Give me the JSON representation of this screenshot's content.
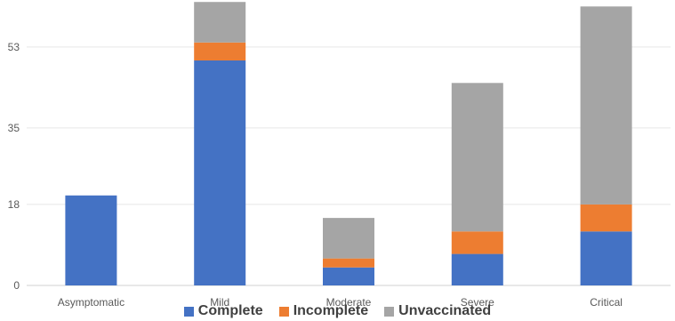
{
  "chart_data": {
    "type": "bar",
    "stacked": true,
    "title": "",
    "xlabel": "",
    "ylabel": "",
    "categories": [
      "Asymptomatic",
      "Mild",
      "Moderate",
      "Severe",
      "Critical"
    ],
    "series": [
      {
        "name": "Complete",
        "color": "#4472C4",
        "values": [
          20,
          50,
          4,
          7,
          12
        ]
      },
      {
        "name": "Incomplete",
        "color": "#ED7D31",
        "values": [
          0,
          4,
          2,
          5,
          6
        ]
      },
      {
        "name": "Unvaccinated",
        "color": "#A5A5A5",
        "values": [
          0,
          9,
          9,
          33,
          44
        ]
      }
    ],
    "yticks": [
      "0",
      "18",
      "35",
      "53"
    ],
    "ylim": [
      0,
      62
    ],
    "grid": true,
    "legend_position": "bottom"
  }
}
